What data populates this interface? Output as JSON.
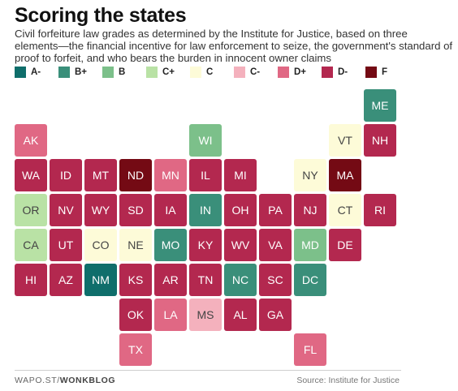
{
  "header": {
    "title": "Scoring the states",
    "subtitle": "Civil forfeiture law grades as determined by the Institute for Justice, based on three elements—the financial incentive for law enforcement to seize, the government's standard of proof to forfeit, and who bears the burden in innocent owner claims"
  },
  "colors": {
    "A-": "#0f6e6b",
    "B+": "#3a8f7a",
    "B": "#7cc08a",
    "C+": "#b9e2a5",
    "C": "#fdfbd8",
    "C-": "#f4b1bd",
    "D+": "#e06884",
    "D-": "#b3284f",
    "F": "#740a14"
  },
  "legend": [
    "A-",
    "B+",
    "B",
    "C+",
    "C",
    "C-",
    "D+",
    "D-",
    "F"
  ],
  "footer": {
    "credit_prefix": "WAPO.ST/",
    "credit_bold": "WONKBLOG",
    "source": "Source: Institute for Justice"
  },
  "chart_data": {
    "type": "tile-grid-map",
    "title": "Scoring the states",
    "grades_order": [
      "A-",
      "B+",
      "B",
      "C+",
      "C",
      "C-",
      "D+",
      "D-",
      "F"
    ],
    "states": [
      {
        "abbr": "ME",
        "grade": "B+",
        "row": 0,
        "col": 10
      },
      {
        "abbr": "AK",
        "grade": "D+",
        "row": 1,
        "col": 0
      },
      {
        "abbr": "WI",
        "grade": "B",
        "row": 1,
        "col": 5
      },
      {
        "abbr": "VT",
        "grade": "C",
        "row": 1,
        "col": 9
      },
      {
        "abbr": "NH",
        "grade": "D-",
        "row": 1,
        "col": 10
      },
      {
        "abbr": "WA",
        "grade": "D-",
        "row": 2,
        "col": 0
      },
      {
        "abbr": "ID",
        "grade": "D-",
        "row": 2,
        "col": 1
      },
      {
        "abbr": "MT",
        "grade": "D-",
        "row": 2,
        "col": 2
      },
      {
        "abbr": "ND",
        "grade": "F",
        "row": 2,
        "col": 3
      },
      {
        "abbr": "MN",
        "grade": "D+",
        "row": 2,
        "col": 4
      },
      {
        "abbr": "IL",
        "grade": "D-",
        "row": 2,
        "col": 5
      },
      {
        "abbr": "MI",
        "grade": "D-",
        "row": 2,
        "col": 6
      },
      {
        "abbr": "NY",
        "grade": "C",
        "row": 2,
        "col": 8
      },
      {
        "abbr": "MA",
        "grade": "F",
        "row": 2,
        "col": 9
      },
      {
        "abbr": "OR",
        "grade": "C+",
        "row": 3,
        "col": 0
      },
      {
        "abbr": "NV",
        "grade": "D-",
        "row": 3,
        "col": 1
      },
      {
        "abbr": "WY",
        "grade": "D-",
        "row": 3,
        "col": 2
      },
      {
        "abbr": "SD",
        "grade": "D-",
        "row": 3,
        "col": 3
      },
      {
        "abbr": "IA",
        "grade": "D-",
        "row": 3,
        "col": 4
      },
      {
        "abbr": "IN",
        "grade": "B+",
        "row": 3,
        "col": 5
      },
      {
        "abbr": "OH",
        "grade": "D-",
        "row": 3,
        "col": 6
      },
      {
        "abbr": "PA",
        "grade": "D-",
        "row": 3,
        "col": 7
      },
      {
        "abbr": "NJ",
        "grade": "D-",
        "row": 3,
        "col": 8
      },
      {
        "abbr": "CT",
        "grade": "C",
        "row": 3,
        "col": 9
      },
      {
        "abbr": "RI",
        "grade": "D-",
        "row": 3,
        "col": 10
      },
      {
        "abbr": "CA",
        "grade": "C+",
        "row": 4,
        "col": 0
      },
      {
        "abbr": "UT",
        "grade": "D-",
        "row": 4,
        "col": 1
      },
      {
        "abbr": "CO",
        "grade": "C",
        "row": 4,
        "col": 2
      },
      {
        "abbr": "NE",
        "grade": "C",
        "row": 4,
        "col": 3
      },
      {
        "abbr": "MO",
        "grade": "B+",
        "row": 4,
        "col": 4
      },
      {
        "abbr": "KY",
        "grade": "D-",
        "row": 4,
        "col": 5
      },
      {
        "abbr": "WV",
        "grade": "D-",
        "row": 4,
        "col": 6
      },
      {
        "abbr": "VA",
        "grade": "D-",
        "row": 4,
        "col": 7
      },
      {
        "abbr": "MD",
        "grade": "B",
        "row": 4,
        "col": 8
      },
      {
        "abbr": "DE",
        "grade": "D-",
        "row": 4,
        "col": 9
      },
      {
        "abbr": "HI",
        "grade": "D-",
        "row": 5,
        "col": 0
      },
      {
        "abbr": "AZ",
        "grade": "D-",
        "row": 5,
        "col": 1
      },
      {
        "abbr": "NM",
        "grade": "A-",
        "row": 5,
        "col": 2
      },
      {
        "abbr": "KS",
        "grade": "D-",
        "row": 5,
        "col": 3
      },
      {
        "abbr": "AR",
        "grade": "D-",
        "row": 5,
        "col": 4
      },
      {
        "abbr": "TN",
        "grade": "D-",
        "row": 5,
        "col": 5
      },
      {
        "abbr": "NC",
        "grade": "B+",
        "row": 5,
        "col": 6
      },
      {
        "abbr": "SC",
        "grade": "D-",
        "row": 5,
        "col": 7
      },
      {
        "abbr": "DC",
        "grade": "B+",
        "row": 5,
        "col": 8
      },
      {
        "abbr": "OK",
        "grade": "D-",
        "row": 6,
        "col": 3
      },
      {
        "abbr": "LA",
        "grade": "D+",
        "row": 6,
        "col": 4
      },
      {
        "abbr": "MS",
        "grade": "C-",
        "row": 6,
        "col": 5
      },
      {
        "abbr": "AL",
        "grade": "D-",
        "row": 6,
        "col": 6
      },
      {
        "abbr": "GA",
        "grade": "D-",
        "row": 6,
        "col": 7
      },
      {
        "abbr": "TX",
        "grade": "D+",
        "row": 7,
        "col": 3
      },
      {
        "abbr": "FL",
        "grade": "D+",
        "row": 7,
        "col": 8
      }
    ]
  }
}
